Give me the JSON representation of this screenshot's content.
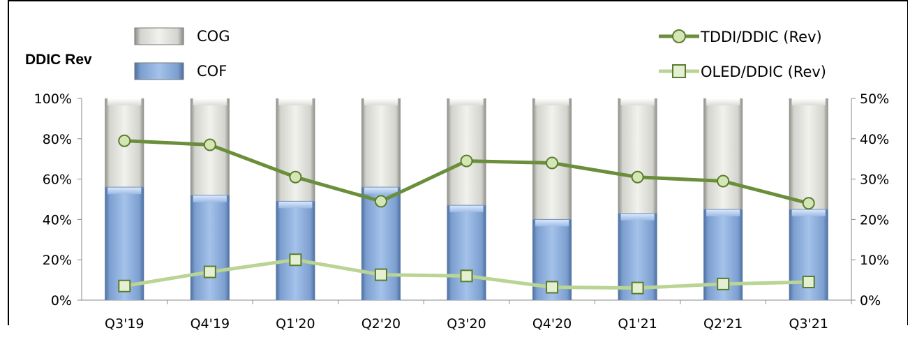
{
  "chart_data": {
    "type": "bar",
    "subtype": "stacked-100-with-lines",
    "ylabel": "DDIC Rev",
    "categories": [
      "Q3'19",
      "Q4'19",
      "Q1'20",
      "Q2'20",
      "Q3'20",
      "Q4'20",
      "Q1'21",
      "Q2'21",
      "Q3'21"
    ],
    "y_left": {
      "ylim": [
        0,
        100
      ],
      "ticks": [
        "0%",
        "20%",
        "40%",
        "60%",
        "80%",
        "100%"
      ]
    },
    "y_right": {
      "ylim": [
        0,
        50
      ],
      "ticks": [
        "0%",
        "10%",
        "20%",
        "30%",
        "40%",
        "50%"
      ]
    },
    "bar_series": [
      {
        "name": "COF",
        "axis": "left",
        "color": "#8fb1e0",
        "values": [
          56,
          52,
          49,
          56,
          47,
          40,
          43,
          45,
          45
        ]
      },
      {
        "name": "COG",
        "axis": "left",
        "color": "#e8e8e2",
        "values": [
          44,
          48,
          51,
          44,
          53,
          60,
          57,
          55,
          55
        ]
      }
    ],
    "line_series": [
      {
        "name": "TDDI/DDIC (Rev)",
        "axis": "right",
        "color": "#6a8e3a",
        "marker": "circle",
        "values": [
          39.5,
          38.5,
          30.5,
          24.5,
          34.5,
          34,
          30.5,
          29.5,
          24
        ]
      },
      {
        "name": "OLED/DDIC (Rev)",
        "axis": "right",
        "color": "#b9d494",
        "marker": "square",
        "values": [
          3.5,
          7,
          10,
          6.3,
          6,
          3.2,
          3,
          4,
          4.5
        ]
      }
    ],
    "legend": {
      "left": [
        "COG",
        "COF"
      ],
      "right": [
        "TDDI/DDIC (Rev)",
        "OLED/DDIC (Rev)"
      ]
    },
    "grid": false
  }
}
